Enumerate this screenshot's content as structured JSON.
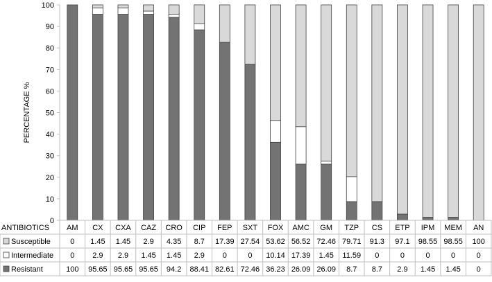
{
  "chart_data": {
    "type": "bar",
    "stacked": true,
    "ylabel": "PERCENTAGE %",
    "table_header_label": "ANTIBIOTICS",
    "ylim": [
      0,
      100
    ],
    "yticks": [
      0,
      10,
      20,
      30,
      40,
      50,
      60,
      70,
      80,
      90,
      100
    ],
    "categories": [
      "AM",
      "CX",
      "CXA",
      "CAZ",
      "CRO",
      "CIP",
      "FEP",
      "SXT",
      "FOX",
      "AMC",
      "GM",
      "TZP",
      "CS",
      "ETP",
      "IPM",
      "MEM",
      "AN"
    ],
    "series": [
      {
        "name": "Susceptible",
        "color": "#d9d9d9",
        "values": [
          0,
          1.45,
          1.45,
          2.9,
          4.35,
          8.7,
          17.39,
          27.54,
          53.62,
          56.52,
          72.46,
          79.71,
          91.3,
          97.1,
          98.55,
          98.55,
          100
        ],
        "labels": [
          "0",
          "1.45",
          "1.45",
          "2.9",
          "4.35",
          "8.7",
          "17.39",
          "27.54",
          "53.62",
          "56.52",
          "72.46",
          "79.71",
          "91.3",
          "97.1",
          "98.55",
          "98.55",
          "100"
        ]
      },
      {
        "name": "Intermediate",
        "color": "#ffffff",
        "values": [
          0,
          2.9,
          2.9,
          1.45,
          1.45,
          2.9,
          0,
          0,
          10.14,
          17.39,
          1.45,
          11.59,
          0,
          0,
          0,
          0,
          0
        ],
        "labels": [
          "0",
          "2.9",
          "2.9",
          "1.45",
          "1.45",
          "2.9",
          "0",
          "0",
          "10.14",
          "17.39",
          "1.45",
          "11.59",
          "0",
          "0",
          "0",
          "0",
          "0"
        ]
      },
      {
        "name": "Resistant",
        "color": "#737373",
        "values": [
          100,
          95.65,
          95.65,
          95.65,
          94.2,
          88.41,
          82.61,
          72.46,
          36.23,
          26.09,
          26.09,
          8.7,
          8.7,
          2.9,
          1.45,
          1.45,
          0
        ],
        "labels": [
          "100",
          "95.65",
          "95.65",
          "95.65",
          "94.2",
          "88.41",
          "82.61",
          "72.46",
          "36.23",
          "26.09",
          "26.09",
          "8.7",
          "8.7",
          "2.9",
          "1.45",
          "1.45",
          "0"
        ]
      }
    ],
    "grid": false,
    "legend": "data-table-left"
  }
}
